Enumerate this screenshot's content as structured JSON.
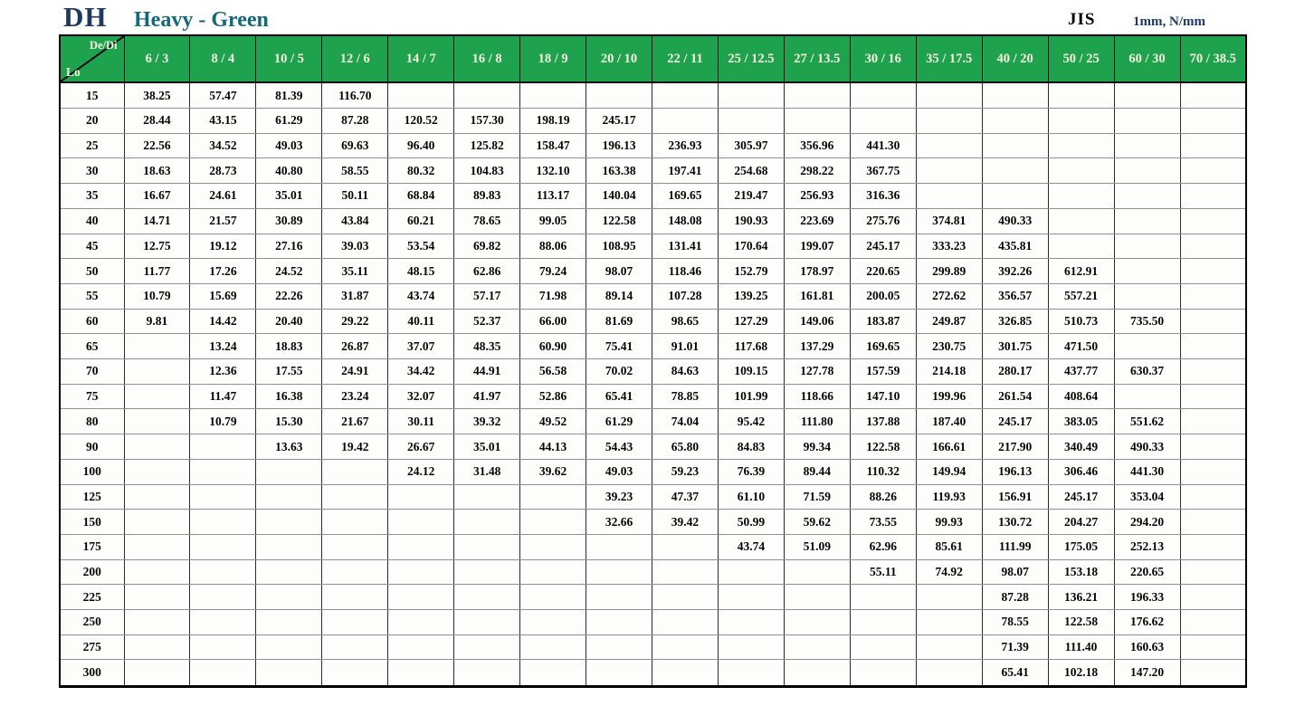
{
  "header": {
    "logo": "DH",
    "title": "Heavy - Green",
    "standard": "JIS",
    "units": "1mm, N/mm"
  },
  "colors": {
    "header_bg": "#1FA24E",
    "header_text": "#F7F3E0",
    "logo_navy": "#1E3A63",
    "title_teal": "#14687A"
  },
  "table": {
    "corner": {
      "top_label": "De/Di",
      "bottom_label": "Lo"
    },
    "columns": [
      "6 / 3",
      "8 / 4",
      "10 / 5",
      "12 / 6",
      "14 / 7",
      "16 / 8",
      "18 / 9",
      "20 / 10",
      "22 / 11",
      "25 / 12.5",
      "27 / 13.5",
      "30 / 16",
      "35 / 17.5",
      "40 / 20",
      "50 / 25",
      "60 / 30",
      "70 / 38.5"
    ],
    "rows": [
      {
        "lo": "15",
        "values": [
          "38.25",
          "57.47",
          "81.39",
          "116.70",
          "",
          "",
          "",
          "",
          "",
          "",
          "",
          "",
          "",
          "",
          "",
          "",
          ""
        ]
      },
      {
        "lo": "20",
        "values": [
          "28.44",
          "43.15",
          "61.29",
          "87.28",
          "120.52",
          "157.30",
          "198.19",
          "245.17",
          "",
          "",
          "",
          "",
          "",
          "",
          "",
          "",
          ""
        ]
      },
      {
        "lo": "25",
        "values": [
          "22.56",
          "34.52",
          "49.03",
          "69.63",
          "96.40",
          "125.82",
          "158.47",
          "196.13",
          "236.93",
          "305.97",
          "356.96",
          "441.30",
          "",
          "",
          "",
          "",
          ""
        ]
      },
      {
        "lo": "30",
        "values": [
          "18.63",
          "28.73",
          "40.80",
          "58.55",
          "80.32",
          "104.83",
          "132.10",
          "163.38",
          "197.41",
          "254.68",
          "298.22",
          "367.75",
          "",
          "",
          "",
          "",
          ""
        ]
      },
      {
        "lo": "35",
        "values": [
          "16.67",
          "24.61",
          "35.01",
          "50.11",
          "68.84",
          "89.83",
          "113.17",
          "140.04",
          "169.65",
          "219.47",
          "256.93",
          "316.36",
          "",
          "",
          "",
          "",
          ""
        ]
      },
      {
        "lo": "40",
        "values": [
          "14.71",
          "21.57",
          "30.89",
          "43.84",
          "60.21",
          "78.65",
          "99.05",
          "122.58",
          "148.08",
          "190.93",
          "223.69",
          "275.76",
          "374.81",
          "490.33",
          "",
          "",
          ""
        ]
      },
      {
        "lo": "45",
        "values": [
          "12.75",
          "19.12",
          "27.16",
          "39.03",
          "53.54",
          "69.82",
          "88.06",
          "108.95",
          "131.41",
          "170.64",
          "199.07",
          "245.17",
          "333.23",
          "435.81",
          "",
          "",
          ""
        ]
      },
      {
        "lo": "50",
        "values": [
          "11.77",
          "17.26",
          "24.52",
          "35.11",
          "48.15",
          "62.86",
          "79.24",
          "98.07",
          "118.46",
          "152.79",
          "178.97",
          "220.65",
          "299.89",
          "392.26",
          "612.91",
          "",
          ""
        ]
      },
      {
        "lo": "55",
        "values": [
          "10.79",
          "15.69",
          "22.26",
          "31.87",
          "43.74",
          "57.17",
          "71.98",
          "89.14",
          "107.28",
          "139.25",
          "161.81",
          "200.05",
          "272.62",
          "356.57",
          "557.21",
          "",
          ""
        ]
      },
      {
        "lo": "60",
        "values": [
          "9.81",
          "14.42",
          "20.40",
          "29.22",
          "40.11",
          "52.37",
          "66.00",
          "81.69",
          "98.65",
          "127.29",
          "149.06",
          "183.87",
          "249.87",
          "326.85",
          "510.73",
          "735.50",
          ""
        ]
      },
      {
        "lo": "65",
        "values": [
          "",
          "13.24",
          "18.83",
          "26.87",
          "37.07",
          "48.35",
          "60.90",
          "75.41",
          "91.01",
          "117.68",
          "137.29",
          "169.65",
          "230.75",
          "301.75",
          "471.50",
          "",
          ""
        ]
      },
      {
        "lo": "70",
        "values": [
          "",
          "12.36",
          "17.55",
          "24.91",
          "34.42",
          "44.91",
          "56.58",
          "70.02",
          "84.63",
          "109.15",
          "127.78",
          "157.59",
          "214.18",
          "280.17",
          "437.77",
          "630.37",
          ""
        ]
      },
      {
        "lo": "75",
        "values": [
          "",
          "11.47",
          "16.38",
          "23.24",
          "32.07",
          "41.97",
          "52.86",
          "65.41",
          "78.85",
          "101.99",
          "118.66",
          "147.10",
          "199.96",
          "261.54",
          "408.64",
          "",
          ""
        ]
      },
      {
        "lo": "80",
        "values": [
          "",
          "10.79",
          "15.30",
          "21.67",
          "30.11",
          "39.32",
          "49.52",
          "61.29",
          "74.04",
          "95.42",
          "111.80",
          "137.88",
          "187.40",
          "245.17",
          "383.05",
          "551.62",
          ""
        ]
      },
      {
        "lo": "90",
        "values": [
          "",
          "",
          "13.63",
          "19.42",
          "26.67",
          "35.01",
          "44.13",
          "54.43",
          "65.80",
          "84.83",
          "99.34",
          "122.58",
          "166.61",
          "217.90",
          "340.49",
          "490.33",
          ""
        ]
      },
      {
        "lo": "100",
        "values": [
          "",
          "",
          "",
          "",
          "24.12",
          "31.48",
          "39.62",
          "49.03",
          "59.23",
          "76.39",
          "89.44",
          "110.32",
          "149.94",
          "196.13",
          "306.46",
          "441.30",
          ""
        ]
      },
      {
        "lo": "125",
        "values": [
          "",
          "",
          "",
          "",
          "",
          "",
          "",
          "39.23",
          "47.37",
          "61.10",
          "71.59",
          "88.26",
          "119.93",
          "156.91",
          "245.17",
          "353.04",
          ""
        ]
      },
      {
        "lo": "150",
        "values": [
          "",
          "",
          "",
          "",
          "",
          "",
          "",
          "32.66",
          "39.42",
          "50.99",
          "59.62",
          "73.55",
          "99.93",
          "130.72",
          "204.27",
          "294.20",
          ""
        ]
      },
      {
        "lo": "175",
        "values": [
          "",
          "",
          "",
          "",
          "",
          "",
          "",
          "",
          "",
          "43.74",
          "51.09",
          "62.96",
          "85.61",
          "111.99",
          "175.05",
          "252.13",
          ""
        ]
      },
      {
        "lo": "200",
        "values": [
          "",
          "",
          "",
          "",
          "",
          "",
          "",
          "",
          "",
          "",
          "",
          "55.11",
          "74.92",
          "98.07",
          "153.18",
          "220.65",
          ""
        ]
      },
      {
        "lo": "225",
        "values": [
          "",
          "",
          "",
          "",
          "",
          "",
          "",
          "",
          "",
          "",
          "",
          "",
          "",
          "87.28",
          "136.21",
          "196.33",
          ""
        ]
      },
      {
        "lo": "250",
        "values": [
          "",
          "",
          "",
          "",
          "",
          "",
          "",
          "",
          "",
          "",
          "",
          "",
          "",
          "78.55",
          "122.58",
          "176.62",
          ""
        ]
      },
      {
        "lo": "275",
        "values": [
          "",
          "",
          "",
          "",
          "",
          "",
          "",
          "",
          "",
          "",
          "",
          "",
          "",
          "71.39",
          "111.40",
          "160.63",
          ""
        ]
      },
      {
        "lo": "300",
        "values": [
          "",
          "",
          "",
          "",
          "",
          "",
          "",
          "",
          "",
          "",
          "",
          "",
          "",
          "65.41",
          "102.18",
          "147.20",
          ""
        ]
      }
    ]
  }
}
